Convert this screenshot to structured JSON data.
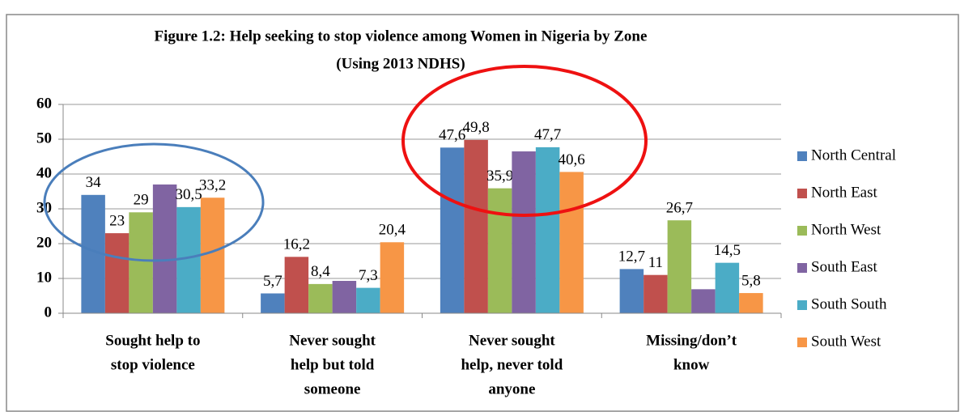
{
  "chart_data": {
    "type": "bar",
    "title": "Figure 1.2:  Help seeking to stop violence among Women in Nigeria by Zone",
    "subtitle": "(Using 2013 NDHS)",
    "categories": [
      [
        "Sought help to",
        "stop violence"
      ],
      [
        "Never sought",
        "help but told",
        "someone"
      ],
      [
        "Never sought",
        "help, never told",
        "anyone"
      ],
      [
        "Missing/don’t",
        "know"
      ]
    ],
    "series": [
      {
        "name": "North Central",
        "color": "#4f81bd",
        "values": [
          34,
          5.7,
          47.6,
          12.7
        ],
        "value_labels": [
          "34",
          "5,7",
          "47,6",
          "12,7"
        ]
      },
      {
        "name": "North East",
        "color": "#c0504d",
        "values": [
          23,
          16.2,
          49.8,
          11
        ],
        "value_labels": [
          "23",
          "16,2",
          "49,8",
          "11"
        ]
      },
      {
        "name": "North West",
        "color": "#9bbb59",
        "values": [
          29,
          8.4,
          35.9,
          26.7
        ],
        "value_labels": [
          "29",
          "8,4",
          "35,9",
          "26,7"
        ]
      },
      {
        "name": "South East",
        "color": "#8064a2",
        "values": [
          37,
          9.3,
          46.5,
          6.9
        ]
      },
      {
        "name": "South South",
        "color": "#4bacc6",
        "values": [
          30.5,
          7.3,
          47.7,
          14.5
        ],
        "value_labels": [
          "30,5",
          "7,3",
          "47,7",
          "14,5"
        ]
      },
      {
        "name": "South West",
        "color": "#f79646",
        "values": [
          33.2,
          20.4,
          40.6,
          5.8
        ],
        "value_labels": [
          "33,2",
          "20,4",
          "40,6",
          "5,8"
        ]
      }
    ],
    "ylim": [
      0,
      60
    ],
    "yticks": [
      0,
      10,
      20,
      30,
      40,
      50,
      60
    ],
    "grid": true,
    "legend": "right"
  }
}
